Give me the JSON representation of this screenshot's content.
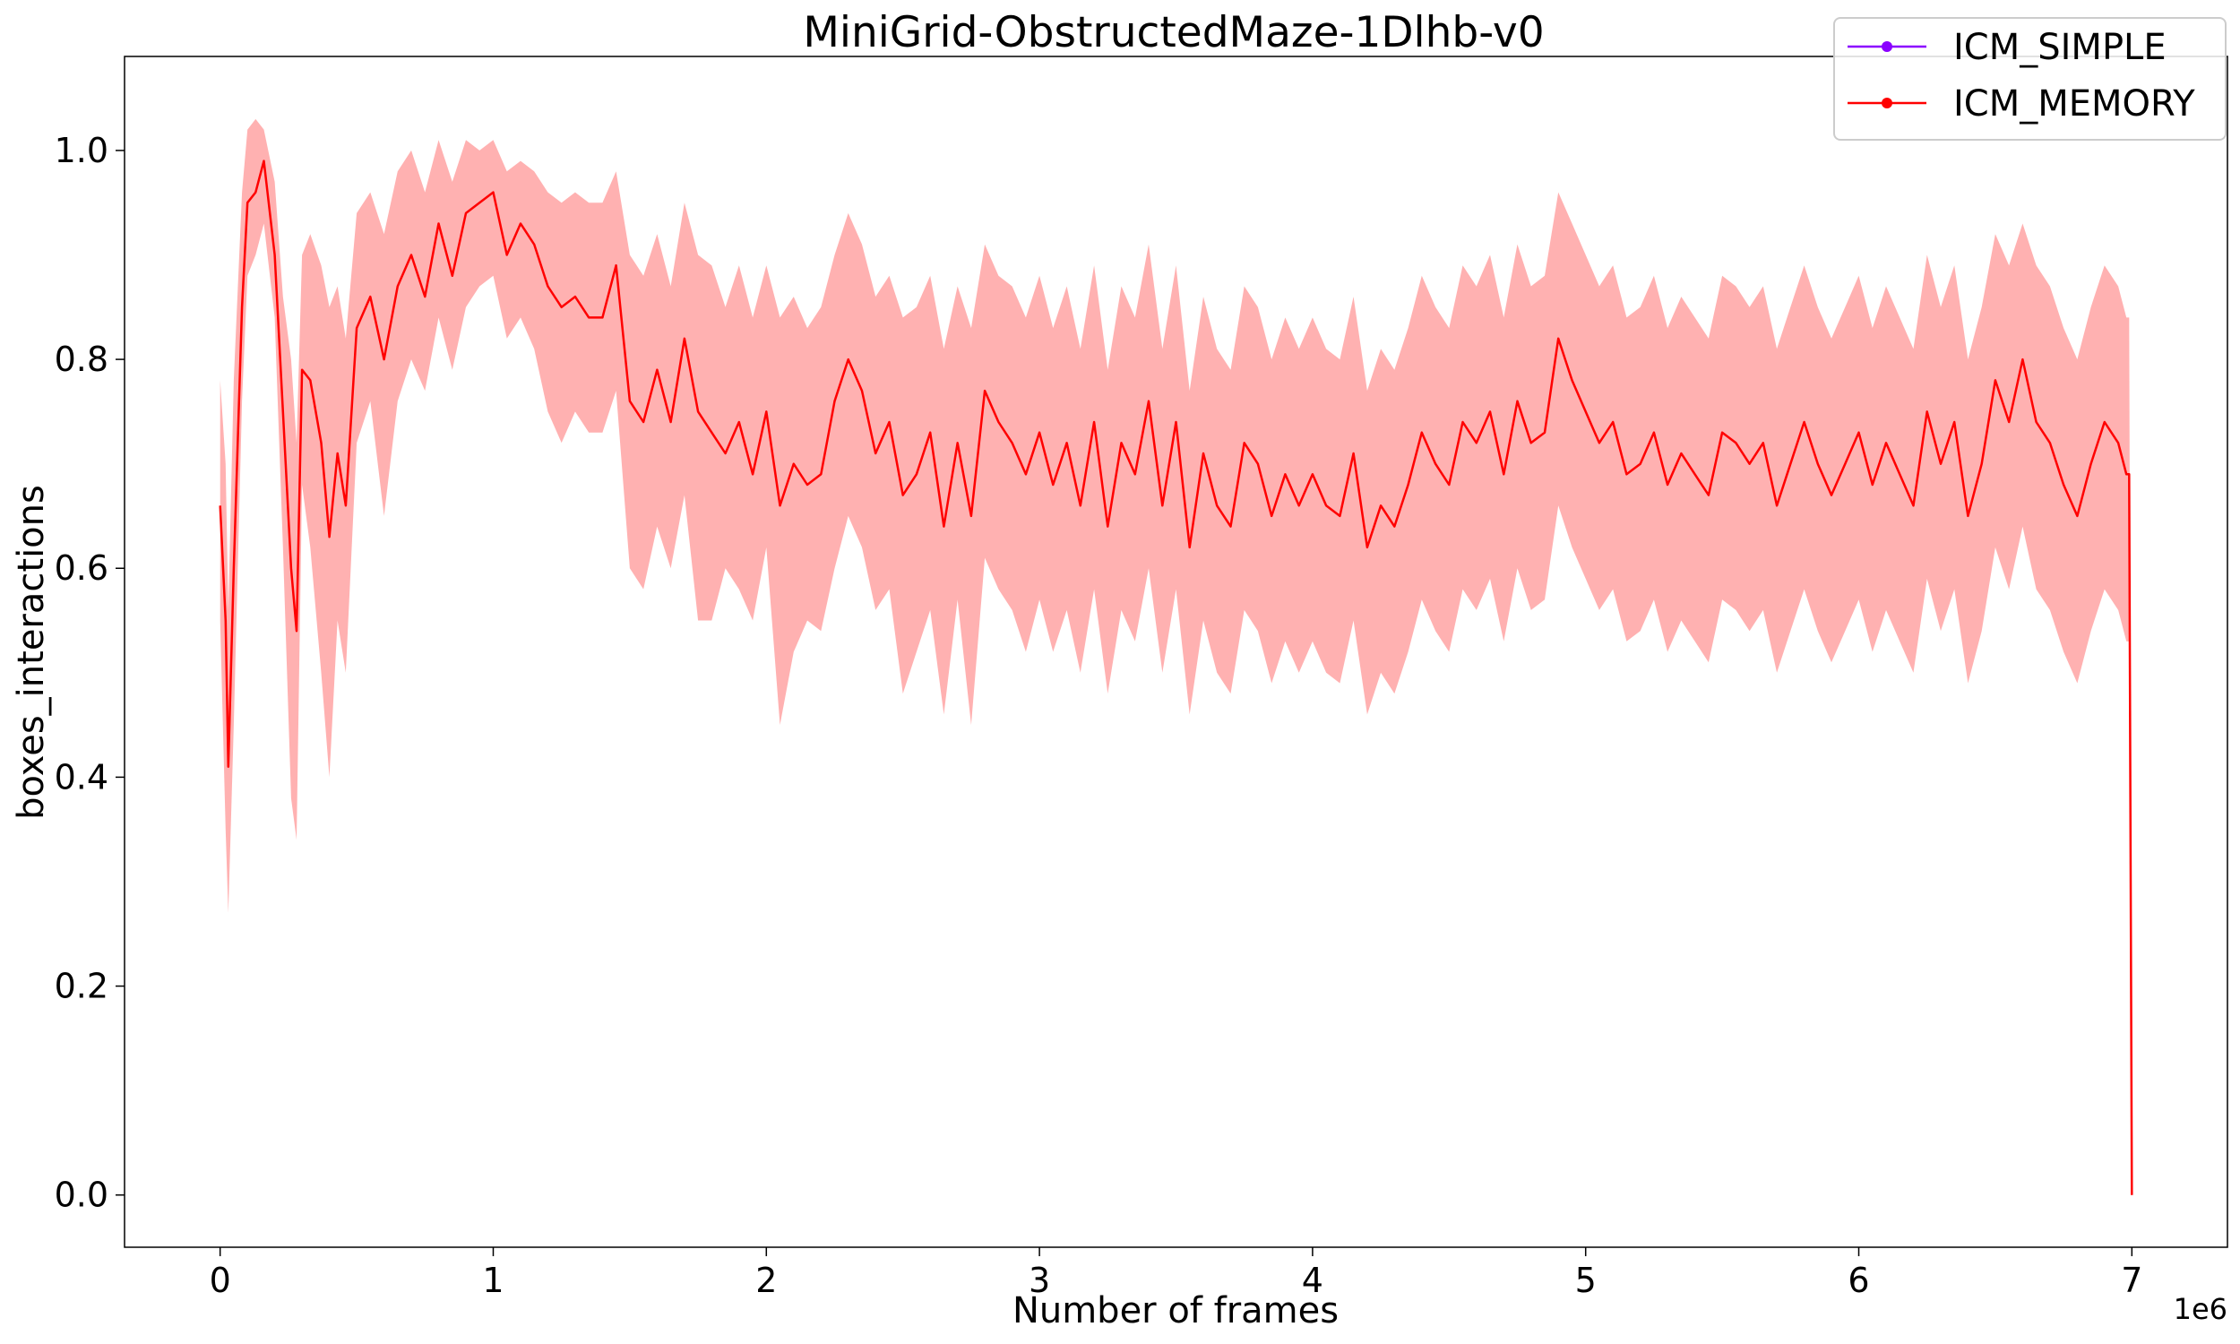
{
  "chart_data": {
    "type": "line",
    "title": "MiniGrid-ObstructedMaze-1Dlhb-v0",
    "xlabel": "Number of frames",
    "ylabel": "boxes_interactions",
    "x_offset_label": "1e6",
    "xlim": [
      -0.35,
      7.35
    ],
    "ylim": [
      -0.05,
      1.09
    ],
    "x_ticks": [
      0,
      1,
      2,
      3,
      4,
      5,
      6,
      7
    ],
    "x_tick_labels": [
      "0",
      "1",
      "2",
      "3",
      "4",
      "5",
      "6",
      "7"
    ],
    "y_ticks": [
      0.0,
      0.2,
      0.4,
      0.6,
      0.8,
      1.0
    ],
    "y_tick_labels": [
      "0.0",
      "0.2",
      "0.4",
      "0.6",
      "0.8",
      "1.0"
    ],
    "grid": false,
    "legend_position": "top-right",
    "legend": [
      {
        "name": "ICM_SIMPLE",
        "color": "#8b00ff"
      },
      {
        "name": "ICM_MEMORY",
        "color": "#ff0000"
      }
    ],
    "series": [
      {
        "name": "ICM_MEMORY",
        "color": "#ff0000",
        "band_color": "#ff9090",
        "x": [
          0.0,
          0.02,
          0.03,
          0.05,
          0.08,
          0.1,
          0.13,
          0.16,
          0.2,
          0.23,
          0.26,
          0.28,
          0.3,
          0.33,
          0.37,
          0.4,
          0.43,
          0.46,
          0.5,
          0.55,
          0.6,
          0.65,
          0.7,
          0.75,
          0.8,
          0.85,
          0.9,
          0.95,
          1.0,
          1.05,
          1.1,
          1.15,
          1.2,
          1.25,
          1.3,
          1.35,
          1.4,
          1.45,
          1.5,
          1.55,
          1.6,
          1.65,
          1.7,
          1.75,
          1.8,
          1.85,
          1.9,
          1.95,
          2.0,
          2.05,
          2.1,
          2.15,
          2.2,
          2.25,
          2.3,
          2.35,
          2.4,
          2.45,
          2.5,
          2.55,
          2.6,
          2.65,
          2.7,
          2.75,
          2.8,
          2.85,
          2.9,
          2.95,
          3.0,
          3.05,
          3.1,
          3.15,
          3.2,
          3.25,
          3.3,
          3.35,
          3.4,
          3.45,
          3.5,
          3.55,
          3.6,
          3.65,
          3.7,
          3.75,
          3.8,
          3.85,
          3.9,
          3.95,
          4.0,
          4.05,
          4.1,
          4.15,
          4.2,
          4.25,
          4.3,
          4.35,
          4.4,
          4.45,
          4.5,
          4.55,
          4.6,
          4.65,
          4.7,
          4.75,
          4.8,
          4.85,
          4.9,
          4.95,
          5.0,
          5.05,
          5.1,
          5.15,
          5.2,
          5.25,
          5.3,
          5.35,
          5.4,
          5.45,
          5.5,
          5.55,
          5.6,
          5.65,
          5.7,
          5.75,
          5.8,
          5.85,
          5.9,
          5.95,
          6.0,
          6.05,
          6.1,
          6.15,
          6.2,
          6.25,
          6.3,
          6.35,
          6.4,
          6.45,
          6.5,
          6.55,
          6.6,
          6.65,
          6.7,
          6.75,
          6.8,
          6.85,
          6.9,
          6.95,
          6.98,
          6.99,
          7.0
        ],
        "y": [
          0.66,
          0.55,
          0.41,
          0.6,
          0.85,
          0.95,
          0.96,
          0.99,
          0.9,
          0.75,
          0.6,
          0.54,
          0.79,
          0.78,
          0.72,
          0.63,
          0.71,
          0.66,
          0.83,
          0.86,
          0.8,
          0.87,
          0.9,
          0.86,
          0.93,
          0.88,
          0.94,
          0.95,
          0.96,
          0.9,
          0.93,
          0.91,
          0.87,
          0.85,
          0.86,
          0.84,
          0.84,
          0.89,
          0.76,
          0.74,
          0.79,
          0.74,
          0.82,
          0.75,
          0.73,
          0.71,
          0.74,
          0.69,
          0.75,
          0.66,
          0.7,
          0.68,
          0.69,
          0.76,
          0.8,
          0.77,
          0.71,
          0.74,
          0.67,
          0.69,
          0.73,
          0.64,
          0.72,
          0.65,
          0.77,
          0.74,
          0.72,
          0.69,
          0.73,
          0.68,
          0.72,
          0.66,
          0.74,
          0.64,
          0.72,
          0.69,
          0.76,
          0.66,
          0.74,
          0.62,
          0.71,
          0.66,
          0.64,
          0.72,
          0.7,
          0.65,
          0.69,
          0.66,
          0.69,
          0.66,
          0.65,
          0.71,
          0.62,
          0.66,
          0.64,
          0.68,
          0.73,
          0.7,
          0.68,
          0.74,
          0.72,
          0.75,
          0.69,
          0.76,
          0.72,
          0.73,
          0.82,
          0.78,
          0.75,
          0.72,
          0.74,
          0.69,
          0.7,
          0.73,
          0.68,
          0.71,
          0.69,
          0.67,
          0.73,
          0.72,
          0.7,
          0.72,
          0.66,
          0.7,
          0.74,
          0.7,
          0.67,
          0.7,
          0.73,
          0.68,
          0.72,
          0.69,
          0.66,
          0.75,
          0.7,
          0.74,
          0.65,
          0.7,
          0.78,
          0.74,
          0.8,
          0.74,
          0.72,
          0.68,
          0.65,
          0.7,
          0.74,
          0.72,
          0.69,
          0.69,
          0.0
        ],
        "lower": [
          0.55,
          0.35,
          0.27,
          0.45,
          0.76,
          0.88,
          0.9,
          0.93,
          0.84,
          0.62,
          0.38,
          0.34,
          0.68,
          0.62,
          0.5,
          0.4,
          0.55,
          0.5,
          0.72,
          0.76,
          0.65,
          0.76,
          0.8,
          0.77,
          0.84,
          0.79,
          0.85,
          0.87,
          0.88,
          0.82,
          0.84,
          0.81,
          0.75,
          0.72,
          0.75,
          0.73,
          0.73,
          0.77,
          0.6,
          0.58,
          0.64,
          0.6,
          0.67,
          0.55,
          0.55,
          0.6,
          0.58,
          0.55,
          0.62,
          0.45,
          0.52,
          0.55,
          0.54,
          0.6,
          0.65,
          0.62,
          0.56,
          0.58,
          0.48,
          0.52,
          0.56,
          0.46,
          0.57,
          0.45,
          0.61,
          0.58,
          0.56,
          0.52,
          0.57,
          0.52,
          0.56,
          0.5,
          0.58,
          0.48,
          0.56,
          0.53,
          0.6,
          0.5,
          0.58,
          0.46,
          0.55,
          0.5,
          0.48,
          0.56,
          0.54,
          0.49,
          0.53,
          0.5,
          0.53,
          0.5,
          0.49,
          0.55,
          0.46,
          0.5,
          0.48,
          0.52,
          0.57,
          0.54,
          0.52,
          0.58,
          0.56,
          0.59,
          0.53,
          0.6,
          0.56,
          0.57,
          0.66,
          0.62,
          0.59,
          0.56,
          0.58,
          0.53,
          0.54,
          0.57,
          0.52,
          0.55,
          0.53,
          0.51,
          0.57,
          0.56,
          0.54,
          0.56,
          0.5,
          0.54,
          0.58,
          0.54,
          0.51,
          0.54,
          0.57,
          0.52,
          0.56,
          0.53,
          0.5,
          0.59,
          0.54,
          0.58,
          0.49,
          0.54,
          0.62,
          0.58,
          0.64,
          0.58,
          0.56,
          0.52,
          0.49,
          0.54,
          0.58,
          0.56,
          0.53,
          0.53,
          0.0
        ],
        "upper": [
          0.78,
          0.7,
          0.56,
          0.78,
          0.96,
          1.02,
          1.03,
          1.02,
          0.97,
          0.86,
          0.8,
          0.72,
          0.9,
          0.92,
          0.89,
          0.85,
          0.87,
          0.82,
          0.94,
          0.96,
          0.92,
          0.98,
          1.0,
          0.96,
          1.01,
          0.97,
          1.01,
          1.0,
          1.01,
          0.98,
          0.99,
          0.98,
          0.96,
          0.95,
          0.96,
          0.95,
          0.95,
          0.98,
          0.9,
          0.88,
          0.92,
          0.87,
          0.95,
          0.9,
          0.89,
          0.85,
          0.89,
          0.84,
          0.89,
          0.84,
          0.86,
          0.83,
          0.85,
          0.9,
          0.94,
          0.91,
          0.86,
          0.88,
          0.84,
          0.85,
          0.88,
          0.81,
          0.87,
          0.83,
          0.91,
          0.88,
          0.87,
          0.84,
          0.88,
          0.83,
          0.87,
          0.81,
          0.89,
          0.79,
          0.87,
          0.84,
          0.91,
          0.81,
          0.89,
          0.77,
          0.86,
          0.81,
          0.79,
          0.87,
          0.85,
          0.8,
          0.84,
          0.81,
          0.84,
          0.81,
          0.8,
          0.86,
          0.77,
          0.81,
          0.79,
          0.83,
          0.88,
          0.85,
          0.83,
          0.89,
          0.87,
          0.9,
          0.84,
          0.91,
          0.87,
          0.88,
          0.96,
          0.93,
          0.9,
          0.87,
          0.89,
          0.84,
          0.85,
          0.88,
          0.83,
          0.86,
          0.84,
          0.82,
          0.88,
          0.87,
          0.85,
          0.87,
          0.81,
          0.85,
          0.89,
          0.85,
          0.82,
          0.85,
          0.88,
          0.83,
          0.87,
          0.84,
          0.81,
          0.9,
          0.85,
          0.89,
          0.8,
          0.85,
          0.92,
          0.89,
          0.93,
          0.89,
          0.87,
          0.83,
          0.8,
          0.85,
          0.89,
          0.87,
          0.84,
          0.84,
          0.0
        ]
      }
    ]
  }
}
